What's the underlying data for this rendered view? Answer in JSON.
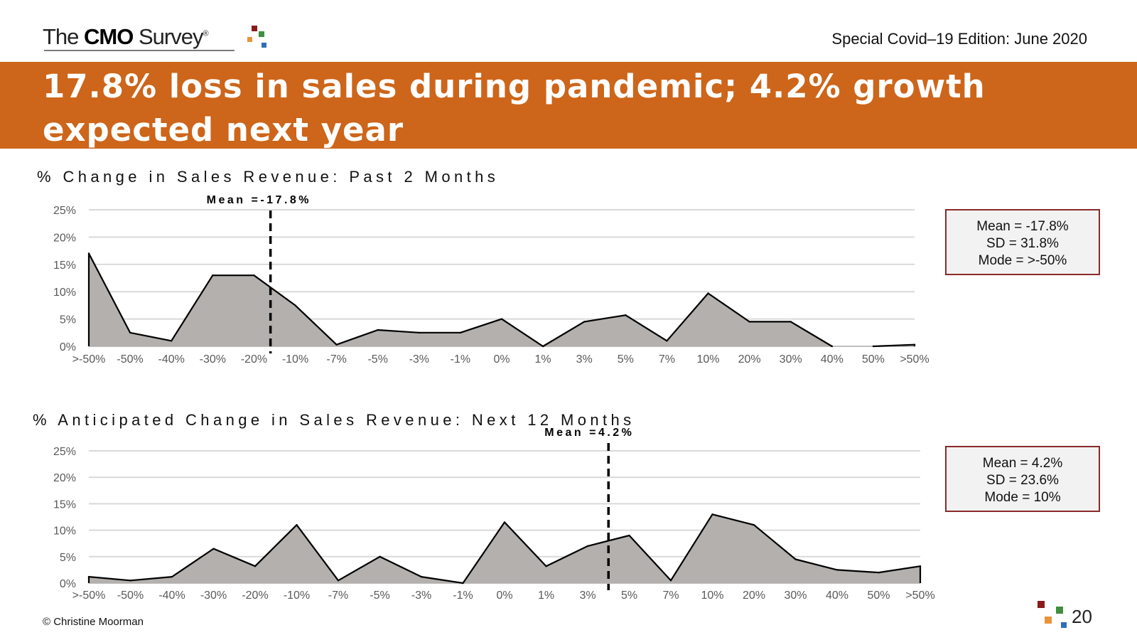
{
  "header": {
    "logo": {
      "pre": "The ",
      "bold": "CMO",
      "post": " Survey",
      "mark": "®"
    },
    "edition": "Special Covid–19 Edition: June 2020"
  },
  "banner": {
    "title": "17.8% loss in sales during pandemic; 4.2% growth expected next year"
  },
  "colors": {
    "banner": "#cd651a",
    "area_fill": "#b3b0ae",
    "line": "#000000",
    "box_border": "#8b2a2a",
    "box_bg": "#f2f2f2",
    "logo_dots": [
      "#8b1a1a",
      "#e8943a",
      "#3f8f3f",
      "#2f6fb5"
    ]
  },
  "chart_data": [
    {
      "type": "area",
      "title": "% Change in Sales Revenue: Past 2 Months",
      "categories": [
        ">-50%",
        "-50%",
        "-40%",
        "-30%",
        "-20%",
        "-10%",
        "-7%",
        "-5%",
        "-3%",
        "-1%",
        "0%",
        "1%",
        "3%",
        "5%",
        "7%",
        "10%",
        "20%",
        "30%",
        "40%",
        "50%",
        ">50%"
      ],
      "values": [
        17,
        2.5,
        1,
        13,
        13,
        7.5,
        0.3,
        3,
        2.5,
        2.5,
        5,
        0,
        4.5,
        5.7,
        1,
        9.7,
        4.5,
        4.5,
        0,
        0,
        0.3
      ],
      "segments": [
        [
          0,
          18
        ],
        [
          19,
          20
        ]
      ],
      "yticks": [
        "0%",
        "5%",
        "10%",
        "15%",
        "20%",
        "25%"
      ],
      "ylim": [
        0,
        25
      ],
      "grid": true,
      "mean_marker": {
        "label": "Mean =-17.8%",
        "position": 4.4
      },
      "stats": [
        "Mean = -17.8%",
        "SD = 31.8%",
        "Mode = >-50%"
      ]
    },
    {
      "type": "area",
      "title": "% Anticipated Change in Sales Revenue: Next 12 Months",
      "categories": [
        ">-50%",
        "-50%",
        "-40%",
        "-30%",
        "-20%",
        "-10%",
        "-7%",
        "-5%",
        "-3%",
        "-1%",
        "0%",
        "1%",
        "3%",
        "5%",
        "7%",
        "10%",
        "20%",
        "30%",
        "40%",
        "50%",
        ">50%"
      ],
      "values": [
        1.2,
        0.5,
        1.2,
        6.5,
        3.2,
        11,
        0.5,
        5,
        1.2,
        0,
        11.5,
        3.2,
        7,
        9,
        0.5,
        13,
        11,
        4.5,
        2.5,
        2,
        3.2
      ],
      "segments": [
        [
          0,
          20
        ]
      ],
      "yticks": [
        "0%",
        "5%",
        "10%",
        "15%",
        "20%",
        "25%"
      ],
      "ylim": [
        0,
        25
      ],
      "grid": true,
      "mean_marker": {
        "label": "Mean =4.2%",
        "position": 12.5
      },
      "stats": [
        "Mean = 4.2%",
        "SD = 23.6%",
        "Mode = 10%"
      ]
    }
  ],
  "footer": {
    "copyright": "© Christine Moorman",
    "page": "20"
  }
}
